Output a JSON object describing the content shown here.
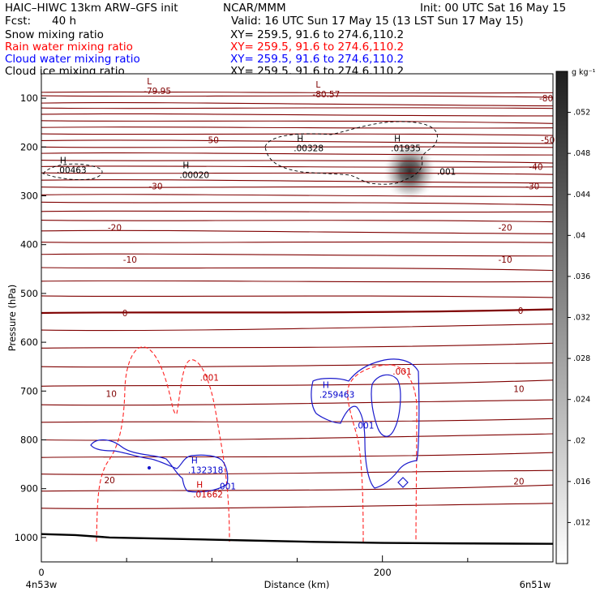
{
  "header": {
    "model": "HAIC–HIWC 13km ARW–GFS init",
    "org": "NCAR/MMM",
    "init": "Init: 00 UTC Sat 16 May 15",
    "fcst_label": "Fcst:",
    "fcst_value": "40 h",
    "valid": "Valid: 16 UTC Sun 17 May 15 (13 LST Sun 17 May 15)"
  },
  "fields": [
    {
      "name": "Snow mixing ratio",
      "xy": "XY= 259.5, 91.6 to 274.6,110.2",
      "color": "#000000"
    },
    {
      "name": "Rain water mixing ratio",
      "xy": "XY= 259.5, 91.6 to 274.6,110.2",
      "color": "#ff0000"
    },
    {
      "name": "Cloud water mixing ratio",
      "xy": "XY= 259.5, 91.6 to 274.6,110.2",
      "color": "#0000ff"
    },
    {
      "name": "Cloud ice mixing ratio",
      "xy": "XY= 259.5, 91.6 to 274.6,110.2",
      "color": "#000000"
    }
  ],
  "chart_data": {
    "type": "contour",
    "xlabel": "Distance (km)",
    "ylabel": "Pressure (hPa)",
    "xlim": [
      0,
      300
    ],
    "ylim": [
      1050,
      50
    ],
    "x_ticks": [
      0,
      200
    ],
    "x_minor_ticks": [
      50,
      100,
      150,
      250
    ],
    "y_ticks": [
      100,
      200,
      300,
      400,
      500,
      600,
      700,
      800,
      900,
      1000
    ],
    "x_endpoints": {
      "left": "4n53w",
      "right": "6n51w"
    },
    "colorbar": {
      "unit": "g kg⁻¹",
      "ticks": [
        ".012",
        ".016",
        ".02",
        ".024",
        ".028",
        ".032",
        ".036",
        ".04",
        ".044",
        ".048",
        ".052"
      ],
      "tick_values": [
        0.012,
        0.016,
        0.02,
        0.024,
        0.028,
        0.032,
        0.036,
        0.04,
        0.044,
        0.048,
        0.052
      ],
      "range": [
        0.008,
        0.056
      ]
    },
    "shading_max": {
      "x": 216,
      "p": 250
    },
    "isotherms_color": "#7f0000",
    "isotherm_labels": [
      {
        "text": "-80",
        "x": 296,
        "p": 100
      },
      {
        "text": "-50",
        "x": 100,
        "p": 185
      },
      {
        "text": "-50",
        "x": 297,
        "p": 185
      },
      {
        "text": "-40",
        "x": 290,
        "p": 240
      },
      {
        "text": "-30",
        "x": 67,
        "p": 280
      },
      {
        "text": "-30",
        "x": 288,
        "p": 280
      },
      {
        "text": "-20",
        "x": 43,
        "p": 365
      },
      {
        "text": "-20",
        "x": 272,
        "p": 365
      },
      {
        "text": "-10",
        "x": 52,
        "p": 430
      },
      {
        "text": "-10",
        "x": 272,
        "p": 430
      },
      {
        "text": "0",
        "x": 49,
        "p": 540
      },
      {
        "text": "0",
        "x": 281,
        "p": 535
      },
      {
        "text": "10",
        "x": 41,
        "p": 705
      },
      {
        "text": "10",
        "x": 280,
        "p": 695
      },
      {
        "text": "20",
        "x": 40,
        "p": 882
      },
      {
        "text": "20",
        "x": 280,
        "p": 885
      }
    ],
    "extrema_labels": [
      {
        "mark": "L",
        "value": "-79.95",
        "x": 60,
        "p": 88,
        "color": "#7f0000"
      },
      {
        "mark": "L",
        "value": "-80.57",
        "x": 159,
        "p": 95,
        "color": "#7f0000"
      },
      {
        "mark": "H",
        "value": ".00463",
        "x": 9,
        "p": 250,
        "color": "#000000"
      },
      {
        "mark": "H",
        "value": ".00020",
        "x": 81,
        "p": 260,
        "color": "#000000"
      },
      {
        "mark": "H",
        "value": ".00328",
        "x": 148,
        "p": 205,
        "color": "#000000"
      },
      {
        "mark": "H",
        "value": ".01935",
        "x": 205,
        "p": 205,
        "color": "#000000"
      },
      {
        "mark": "H",
        "value": ".259463",
        "x": 163,
        "p": 710,
        "color": "#0000cc"
      },
      {
        "mark": "H",
        "value": ".132318",
        "x": 86,
        "p": 865,
        "color": "#0000cc"
      },
      {
        "mark": "H",
        "value": ".01662",
        "x": 89,
        "p": 915,
        "color": "#cc0000"
      }
    ],
    "contour_labels": [
      {
        "text": ".001",
        "x": 232,
        "p": 250,
        "color": "#000000"
      },
      {
        "text": ".001",
        "x": 93,
        "p": 672,
        "color": "#cc0000"
      },
      {
        "text": ".001",
        "x": 206,
        "p": 660,
        "color": "#cc0000"
      },
      {
        "text": ".001",
        "x": 184,
        "p": 770,
        "color": "#0000cc"
      },
      {
        "text": ".001",
        "x": 103,
        "p": 895,
        "color": "#0000cc"
      }
    ]
  }
}
